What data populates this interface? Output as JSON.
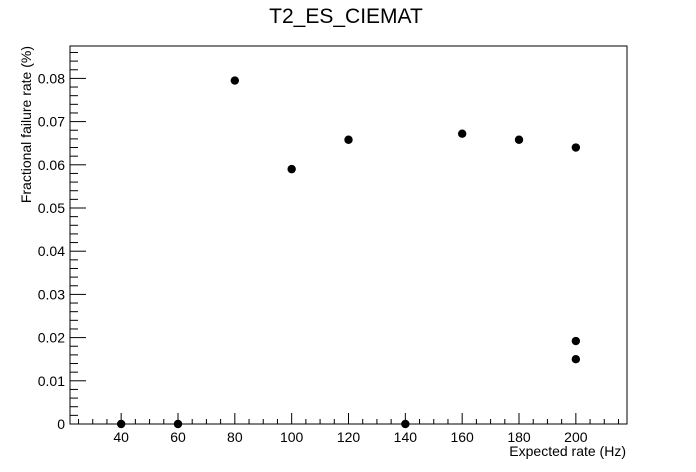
{
  "chart_data": {
    "type": "scatter",
    "title": "T2_ES_CIEMAT",
    "xlabel": "Expected rate (Hz)",
    "ylabel": "Fractional failure rate (%)",
    "xlim": [
      22,
      218
    ],
    "ylim": [
      0,
      0.0875
    ],
    "x_ticks": [
      40,
      60,
      80,
      100,
      120,
      140,
      160,
      180,
      200
    ],
    "x_tick_labels": [
      "40",
      "60",
      "80",
      "100",
      "120",
      "140",
      "160",
      "180",
      "200"
    ],
    "y_ticks": [
      0,
      0.01,
      0.02,
      0.03,
      0.04,
      0.05,
      0.06,
      0.07,
      0.08
    ],
    "y_tick_labels": [
      "0",
      "0.01",
      "0.02",
      "0.03",
      "0.04",
      "0.05",
      "0.06",
      "0.07",
      "0.08"
    ],
    "grid": false,
    "marker_color": "#000000",
    "points": [
      {
        "x": 40,
        "y": 0
      },
      {
        "x": 60,
        "y": 0
      },
      {
        "x": 80,
        "y": 0.0795
      },
      {
        "x": 100,
        "y": 0.059
      },
      {
        "x": 120,
        "y": 0.0658
      },
      {
        "x": 140,
        "y": 0
      },
      {
        "x": 160,
        "y": 0.0672
      },
      {
        "x": 180,
        "y": 0.0658
      },
      {
        "x": 200,
        "y": 0.064
      },
      {
        "x": 200,
        "y": 0.0192
      },
      {
        "x": 200,
        "y": 0.015
      }
    ]
  }
}
